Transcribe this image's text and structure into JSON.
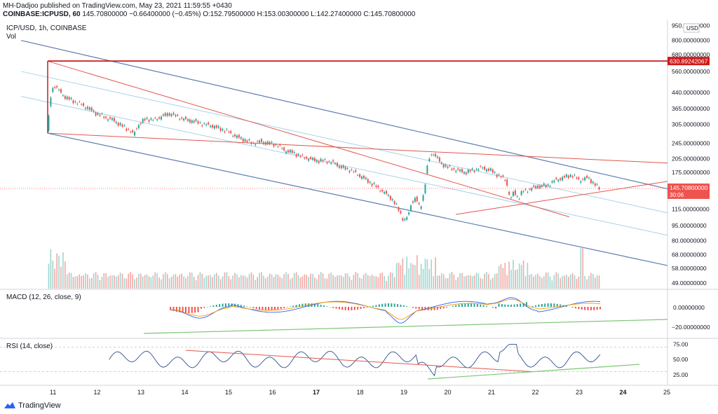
{
  "header": {
    "line1": "MH-Dadjoo published on TradingView.com, May 23, 2021 11:59:55 +0430",
    "symbol": "COINBASE:ICPUSD, 60",
    "price": "145.70800000",
    "change": "−0.66400000 (−0.45%)",
    "o": "O:152.79500000",
    "h": "H:153.00300000",
    "l": "L:142.27400000",
    "c": "C:145.70800000"
  },
  "main_title": "ICP/USD, 1h, COINBASE",
  "vol_label": "Vol",
  "currency": "USD",
  "price_axis": [
    "950.00000000",
    "800.00000000",
    "680.00000000",
    "560.00000000",
    "440.00000000",
    "365.00000000",
    "305.00000000",
    "245.00000000",
    "205.00000000",
    "175.00000000",
    "115.00000000",
    "95.00000000",
    "80.00000000",
    "68.00000000",
    "58.00000000",
    "49.00000000"
  ],
  "price_tags": {
    "resistance": "630.89242067",
    "last": "145.70800000",
    "countdown": "30:06"
  },
  "macd": {
    "title": "MACD (12, 26, close, 9)",
    "axis": [
      "0.00000000",
      "−20.00000000"
    ]
  },
  "rsi": {
    "title": "RSI (14, close)",
    "axis": [
      "75.00",
      "50.00",
      "25.00"
    ]
  },
  "time_axis": [
    "11",
    "12",
    "13",
    "14",
    "15",
    "16",
    "17",
    "18",
    "19",
    "20",
    "21",
    "22",
    "23",
    "24",
    "25"
  ],
  "footer": {
    "brand": "TradingView"
  },
  "colors": {
    "up": "#26a69a",
    "down": "#ef5350",
    "channel": "#5b7db1",
    "channel_mid": "#a7d3ea",
    "trend": "#e0584f",
    "resistance": "#cc1a1a",
    "macd": "#2962ff",
    "signal": "#ff9800",
    "rsi": "#2f4e8b",
    "support": "#7cc674"
  },
  "chart_data": {
    "type": "candlestick",
    "title": "ICP/USD, 1h, COINBASE",
    "x_ticks": [
      "11",
      "12",
      "13",
      "14",
      "15",
      "16",
      "17",
      "18",
      "19",
      "20",
      "21",
      "22",
      "23",
      "24",
      "25"
    ],
    "y_scale": "log",
    "y_ticks": [
      950,
      800,
      680,
      560,
      440,
      365,
      305,
      245,
      205,
      175,
      115,
      95,
      80,
      68,
      58,
      49
    ],
    "close_path": [
      [
        "11",
        280
      ],
      [
        "11",
        460
      ],
      [
        "12",
        420
      ],
      [
        "12",
        380
      ],
      [
        "13",
        330
      ],
      [
        "13",
        270
      ],
      [
        "14",
        300
      ],
      [
        "14",
        330
      ],
      [
        "15",
        315
      ],
      [
        "15",
        300
      ],
      [
        "16",
        265
      ],
      [
        "16",
        245
      ],
      [
        "17",
        230
      ],
      [
        "17",
        210
      ],
      [
        "18",
        200
      ],
      [
        "18",
        190
      ],
      [
        "19",
        160
      ],
      [
        "19",
        135
      ],
      [
        "20",
        100
      ],
      [
        "20",
        120
      ],
      [
        "20",
        215
      ],
      [
        "21",
        175
      ],
      [
        "21",
        170
      ],
      [
        "22",
        130
      ],
      [
        "22",
        140
      ],
      [
        "23",
        160
      ],
      [
        "23",
        150
      ]
    ],
    "last": 145.708,
    "resistance_level": 630.89242067
  }
}
